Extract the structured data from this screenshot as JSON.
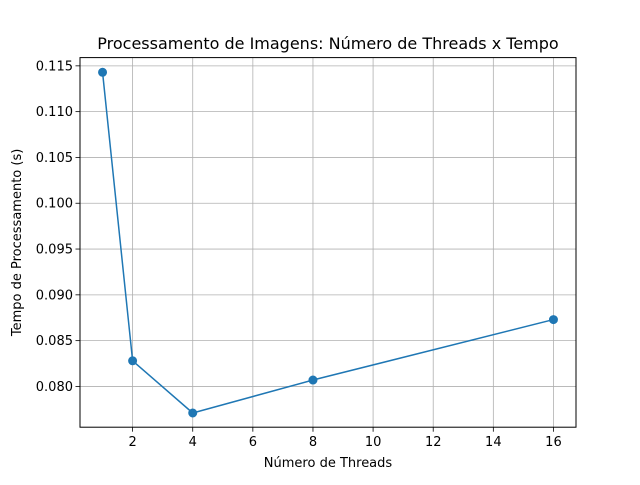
{
  "chart_data": {
    "type": "line",
    "title": "Processamento de Imagens: Número de Threads x Tempo",
    "xlabel": "Número de Threads",
    "ylabel": "Tempo de Processamento (s)",
    "x_ticks": [
      2,
      4,
      6,
      8,
      10,
      12,
      14,
      16
    ],
    "y_ticks": [
      0.08,
      0.085,
      0.09,
      0.095,
      0.1,
      0.105,
      0.11,
      0.115
    ],
    "y_tick_labels": [
      "0.080",
      "0.085",
      "0.090",
      "0.095",
      "0.100",
      "0.105",
      "0.110",
      "0.115"
    ],
    "xlim": [
      0.25,
      16.75
    ],
    "ylim": [
      0.07555,
      0.1159
    ],
    "grid": true,
    "marker": "circle",
    "series": [
      {
        "color": "#1f77b4",
        "x": [
          1,
          2,
          4,
          8,
          16
        ],
        "y": [
          0.1143,
          0.0828,
          0.0771,
          0.0807,
          0.0873
        ]
      }
    ]
  }
}
